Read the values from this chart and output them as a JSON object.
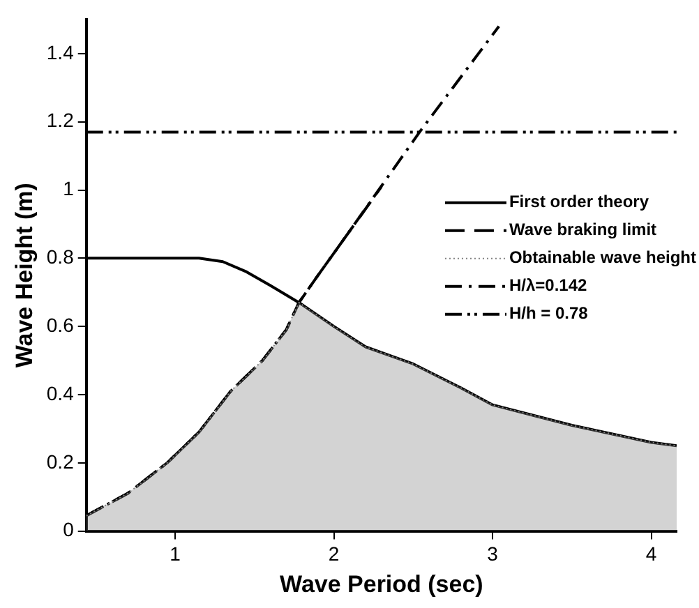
{
  "chart_data": {
    "type": "line",
    "xlabel": "Wave Period (sec)",
    "ylabel": "Wave Height (m)",
    "xlim": [
      0.44,
      4.16
    ],
    "ylim": [
      0,
      1.5
    ],
    "xticks": [
      1,
      2,
      3,
      4
    ],
    "yticks": [
      0,
      0.2,
      0.4,
      0.6,
      0.8,
      1,
      1.2,
      1.4
    ],
    "grid": false,
    "legend": "right",
    "marker": "none",
    "series": [
      {
        "name": "First order theory",
        "line_style": "solid",
        "color": "#000000",
        "x": [
          0.44,
          1.0,
          1.15,
          1.3,
          1.45,
          1.6,
          1.78,
          2.0,
          2.2,
          2.5,
          2.8,
          3.0,
          3.5,
          4.0,
          4.16
        ],
        "values": [
          0.8,
          0.8,
          0.8,
          0.79,
          0.76,
          0.72,
          0.67,
          0.6,
          0.54,
          0.49,
          0.42,
          0.37,
          0.31,
          0.26,
          0.25
        ]
      },
      {
        "name": "Wave braking limit",
        "line_style": "dashed",
        "color": "#000000",
        "x": [
          0.44,
          0.7,
          0.95,
          1.15,
          1.35,
          1.55,
          1.7,
          1.78,
          1.9,
          2.1,
          2.3
        ],
        "values": [
          0.045,
          0.11,
          0.2,
          0.29,
          0.41,
          0.5,
          0.59,
          0.67,
          0.75,
          0.88,
          1.01
        ]
      },
      {
        "name": "Obtainable wave height",
        "type": "area",
        "line_style": "dotted",
        "color": "#808080",
        "x": [
          0.44,
          0.7,
          0.95,
          1.15,
          1.35,
          1.55,
          1.7,
          1.78,
          2.0,
          2.2,
          2.5,
          2.8,
          3.0,
          3.5,
          4.0,
          4.16
        ],
        "values": [
          0.045,
          0.11,
          0.2,
          0.29,
          0.41,
          0.5,
          0.59,
          0.67,
          0.6,
          0.54,
          0.49,
          0.42,
          0.37,
          0.31,
          0.26,
          0.25
        ]
      },
      {
        "name": "H/λ=0.142",
        "line_style": "dashdot",
        "color": "#000000",
        "x": [
          0.44,
          0.7,
          0.95,
          1.15,
          1.35,
          1.55,
          1.7,
          1.78,
          1.9,
          2.1,
          2.54,
          3.04
        ],
        "values": [
          0.045,
          0.11,
          0.2,
          0.29,
          0.41,
          0.5,
          0.59,
          0.67,
          0.75,
          0.88,
          1.17,
          1.48
        ]
      },
      {
        "name": "H/h = 0.78",
        "line_style": "dashdotdot",
        "color": "#000000",
        "x": [
          0.44,
          4.16
        ],
        "values": [
          1.17,
          1.17
        ]
      }
    ]
  }
}
